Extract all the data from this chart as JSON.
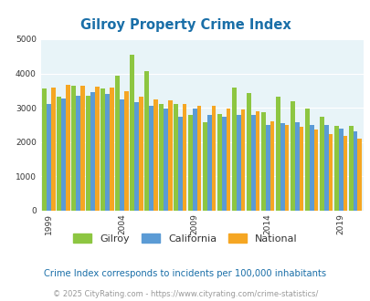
{
  "title": "Gilroy Property Crime Index",
  "subtitle": "Crime Index corresponds to incidents per 100,000 inhabitants",
  "footer": "© 2025 CityRating.com - https://www.cityrating.com/crime-statistics/",
  "years": [
    1999,
    2000,
    2001,
    2002,
    2003,
    2004,
    2005,
    2006,
    2007,
    2008,
    2009,
    2010,
    2011,
    2012,
    2013,
    2014,
    2015,
    2016,
    2017,
    2018,
    2019,
    2020
  ],
  "gilroy": [
    3550,
    3310,
    3650,
    3340,
    3550,
    3940,
    4540,
    4080,
    3100,
    3100,
    2780,
    2590,
    2830,
    3600,
    3430,
    2870,
    3310,
    3200,
    2970,
    2730,
    2480,
    2460
  ],
  "california": [
    3100,
    3270,
    3340,
    3460,
    3400,
    3230,
    3150,
    3050,
    2970,
    2750,
    2980,
    2800,
    2750,
    2780,
    2780,
    2490,
    2540,
    2590,
    2510,
    2490,
    2400,
    2320
  ],
  "national": [
    3600,
    3670,
    3640,
    3620,
    3580,
    3490,
    3310,
    3240,
    3210,
    3100,
    3050,
    3060,
    2980,
    2950,
    2900,
    2610,
    2500,
    2450,
    2360,
    2240,
    2190,
    2100
  ],
  "color_gilroy": "#8dc641",
  "color_california": "#5b9bd5",
  "color_national": "#f5a623",
  "bg_color": "#e8f4f8",
  "title_color": "#1a6fa8",
  "subtitle_color": "#1a6fa8",
  "footer_color": "#999999",
  "grid_color": "#ffffff",
  "ylim": [
    0,
    5000
  ],
  "yticks": [
    0,
    1000,
    2000,
    3000,
    4000,
    5000
  ],
  "tick_years": [
    1999,
    2004,
    2009,
    2014,
    2019
  ]
}
